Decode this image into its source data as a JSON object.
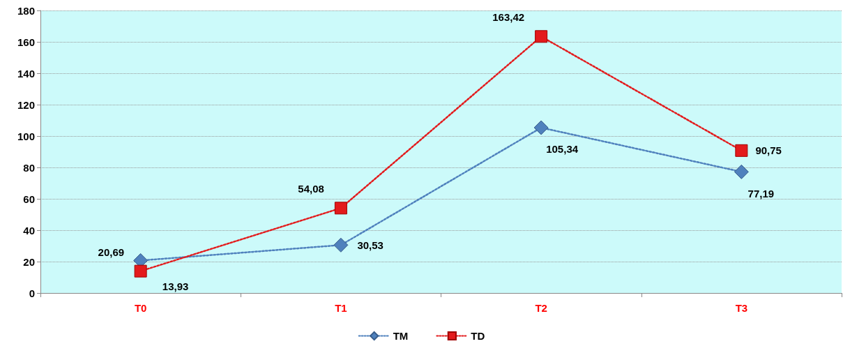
{
  "chart_data": {
    "type": "line",
    "categories": [
      "T0",
      "T1",
      "T2",
      "T3"
    ],
    "series": [
      {
        "name": "TM",
        "color": "#4f81bd",
        "values": [
          20.69,
          30.53,
          105.34,
          77.19
        ],
        "marker": "diamond",
        "value_labels": [
          "20,69",
          "30,53",
          "105,34",
          "77,19"
        ]
      },
      {
        "name": "TD",
        "color": "#e31a1c",
        "values": [
          13.93,
          54.08,
          163.42,
          90.75
        ],
        "marker": "square",
        "value_labels": [
          "13,93",
          "54,08",
          "163,42",
          "90,75"
        ]
      }
    ],
    "ylim": [
      0,
      180
    ],
    "yticks": [
      0,
      20,
      40,
      60,
      80,
      100,
      120,
      140,
      160,
      180
    ],
    "grid": "y",
    "legend": "bottom",
    "line_style": "dotted"
  }
}
